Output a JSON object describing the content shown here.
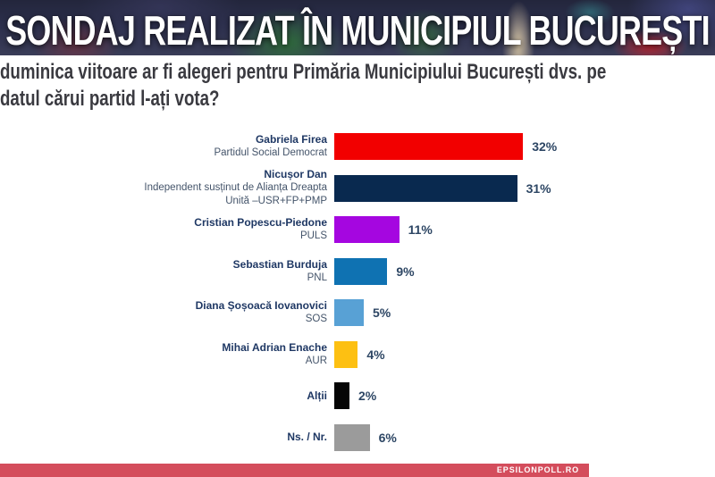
{
  "header": {
    "title": "SONDAJ REALIZAT ÎN MUNICIPIUL BUCUREȘTI"
  },
  "question": {
    "line1": "duminica viitoare ar fi alegeri pentru Primăria Municipiului București dvs. pe",
    "line2": "datul cărui partid l-ați vota?"
  },
  "chart_data": {
    "type": "bar",
    "orientation": "horizontal",
    "unit": "%",
    "xlim": [
      0,
      35
    ],
    "grid": false,
    "value_labels": "outside-right",
    "categories": [
      "Gabriela Firea",
      "Nicușor Dan",
      "Cristian Popescu-Piedone",
      "Sebastian Burduja",
      "Diana Șoșoacă Iovanovici",
      "Mihai Adrian Enache",
      "Alții",
      "Ns. / Nr."
    ],
    "values": [
      32,
      31,
      11,
      9,
      5,
      4,
      2,
      6
    ],
    "bars": [
      {
        "name": "Gabriela Firea",
        "party": "Partidul Social Democrat",
        "value": 32,
        "label": "32%",
        "color": "#f20000"
      },
      {
        "name": "Nicușor Dan",
        "party": "Independent susținut de Alianța Dreapta\nUnită –USR+FP+PMP",
        "value": 31,
        "label": "31%",
        "color": "#09294f"
      },
      {
        "name": "Cristian Popescu-Piedone",
        "party": "PULS",
        "value": 11,
        "label": "11%",
        "color": "#a506e0"
      },
      {
        "name": "Sebastian Burduja",
        "party": "PNL",
        "value": 9,
        "label": "9%",
        "color": "#0f72b2"
      },
      {
        "name": "Diana Șoșoacă Iovanovici",
        "party": "SOS",
        "value": 5,
        "label": "5%",
        "color": "#58a1d5"
      },
      {
        "name": "Mihai Adrian Enache",
        "party": "AUR",
        "value": 4,
        "label": "4%",
        "color": "#fdc012"
      },
      {
        "name": "Alții",
        "party": "",
        "value": 2,
        "label": "2%",
        "color": "#050505"
      },
      {
        "name": "Ns. / Nr.",
        "party": "",
        "value": 6,
        "label": "6%",
        "color": "#9b9b9b"
      }
    ],
    "colors": {
      "name_text": "#1f3864",
      "party_text": "#44546a",
      "percent_text": "#2d4664"
    }
  },
  "footer": {
    "brand": "EPSILONPOLL.RO",
    "bar_color": "#d44d5c"
  }
}
